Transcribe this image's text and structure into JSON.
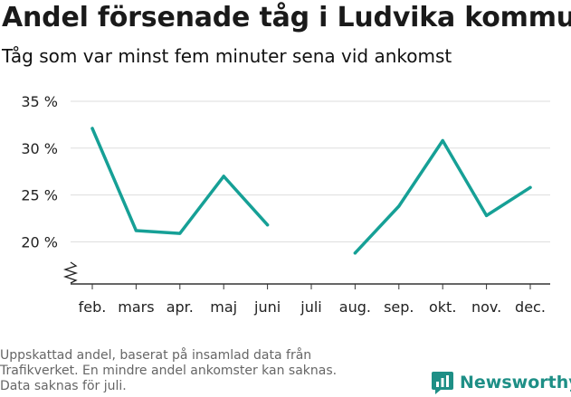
{
  "title": "Andel försenade tåg i Ludvika kommun",
  "subtitle": "Tåg som var minst fem minuter sena vid ankomst",
  "footnote": {
    "line1": "Uppskattad andel, baserat på insamlad data från",
    "line2": "Trafikverket. En mindre andel ankomster kan saknas.",
    "line3": "Data saknas för juli."
  },
  "brand": {
    "name": "Newsworthy",
    "icon": "newsworthy-chart-icon",
    "color": "#1e8f86"
  },
  "colors": {
    "line": "#16a096",
    "grid": "#dddddd",
    "axis": "#333333"
  },
  "chart_data": {
    "type": "line",
    "categories": [
      "feb.",
      "mars",
      "apr.",
      "maj",
      "juni",
      "juli",
      "aug.",
      "sep.",
      "okt.",
      "nov.",
      "dec."
    ],
    "series": [
      {
        "values": [
          32.1,
          21.2,
          20.9,
          27.0,
          21.8,
          null,
          18.8,
          23.8,
          30.8,
          22.8,
          25.8
        ]
      }
    ],
    "y_ticks": [
      20,
      25,
      30,
      35
    ],
    "y_tick_labels": [
      "20 %",
      "25 %",
      "30 %",
      "35 %"
    ],
    "ylim": [
      15.5,
      35
    ],
    "y_axis_break": true,
    "grid": "horizontal",
    "xlabel": "",
    "ylabel": ""
  }
}
